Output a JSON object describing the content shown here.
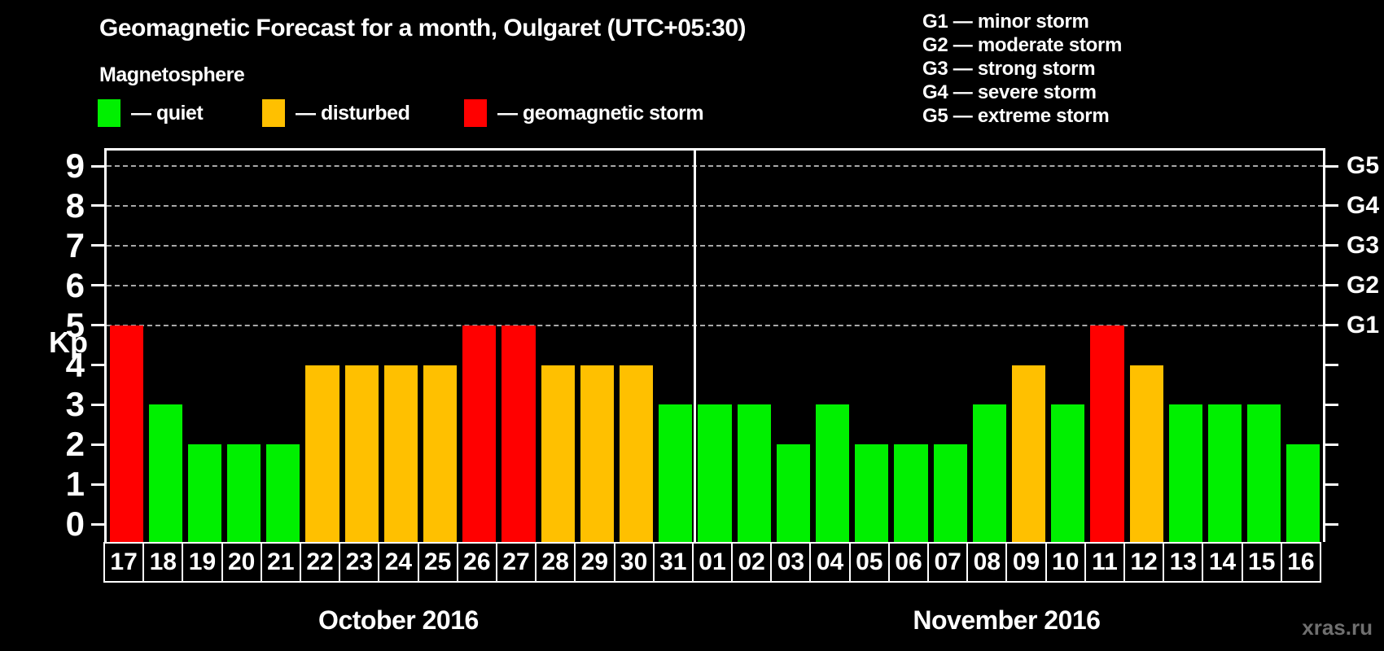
{
  "header": {
    "title": "Geomagnetic Forecast for a month, Oulgaret (UTC+05:30)",
    "subtitle": "Magnetosphere"
  },
  "legend": {
    "items": [
      {
        "status": "quiet",
        "label": "— quiet"
      },
      {
        "status": "disturbed",
        "label": "— disturbed"
      },
      {
        "status": "storm",
        "label": "— geomagnetic storm"
      }
    ]
  },
  "storm_scale_legend": {
    "items": [
      "G1 — minor storm",
      "G2 — moderate storm",
      "G3 — strong storm",
      "G4 — severe storm",
      "G5 — extreme storm"
    ]
  },
  "watermark": "xras.ru",
  "chart_data": {
    "type": "bar",
    "title": "Geomagnetic Forecast for a month, Oulgaret (UTC+05:30)",
    "ylabel": "Kp",
    "ylim": [
      0,
      9
    ],
    "yticks": [
      0,
      1,
      2,
      3,
      4,
      5,
      6,
      7,
      8,
      9
    ],
    "grid_levels": [
      5,
      6,
      7,
      8,
      9
    ],
    "grid_on": true,
    "right_axis": [
      {
        "kp": 5,
        "label": "G1"
      },
      {
        "kp": 6,
        "label": "G2"
      },
      {
        "kp": 7,
        "label": "G3"
      },
      {
        "kp": 8,
        "label": "G4"
      },
      {
        "kp": 9,
        "label": "G5"
      }
    ],
    "status_colors": {
      "quiet": "#00f000",
      "disturbed": "#ffc000",
      "storm": "#ff0000"
    },
    "months": [
      {
        "label": "October 2016",
        "days": [
          {
            "date": "17",
            "kp": 5,
            "status": "storm"
          },
          {
            "date": "18",
            "kp": 3,
            "status": "quiet"
          },
          {
            "date": "19",
            "kp": 2,
            "status": "quiet"
          },
          {
            "date": "20",
            "kp": 2,
            "status": "quiet"
          },
          {
            "date": "21",
            "kp": 2,
            "status": "quiet"
          },
          {
            "date": "22",
            "kp": 4,
            "status": "disturbed"
          },
          {
            "date": "23",
            "kp": 4,
            "status": "disturbed"
          },
          {
            "date": "24",
            "kp": 4,
            "status": "disturbed"
          },
          {
            "date": "25",
            "kp": 4,
            "status": "disturbed"
          },
          {
            "date": "26",
            "kp": 5,
            "status": "storm"
          },
          {
            "date": "27",
            "kp": 5,
            "status": "storm"
          },
          {
            "date": "28",
            "kp": 4,
            "status": "disturbed"
          },
          {
            "date": "29",
            "kp": 4,
            "status": "disturbed"
          },
          {
            "date": "30",
            "kp": 4,
            "status": "disturbed"
          },
          {
            "date": "31",
            "kp": 3,
            "status": "quiet"
          }
        ]
      },
      {
        "label": "November 2016",
        "days": [
          {
            "date": "01",
            "kp": 3,
            "status": "quiet"
          },
          {
            "date": "02",
            "kp": 3,
            "status": "quiet"
          },
          {
            "date": "03",
            "kp": 2,
            "status": "quiet"
          },
          {
            "date": "04",
            "kp": 3,
            "status": "quiet"
          },
          {
            "date": "05",
            "kp": 2,
            "status": "quiet"
          },
          {
            "date": "06",
            "kp": 2,
            "status": "quiet"
          },
          {
            "date": "07",
            "kp": 2,
            "status": "quiet"
          },
          {
            "date": "08",
            "kp": 3,
            "status": "quiet"
          },
          {
            "date": "09",
            "kp": 4,
            "status": "disturbed"
          },
          {
            "date": "10",
            "kp": 3,
            "status": "quiet"
          },
          {
            "date": "11",
            "kp": 5,
            "status": "storm"
          },
          {
            "date": "12",
            "kp": 4,
            "status": "disturbed"
          },
          {
            "date": "13",
            "kp": 3,
            "status": "quiet"
          },
          {
            "date": "14",
            "kp": 3,
            "status": "quiet"
          },
          {
            "date": "15",
            "kp": 3,
            "status": "quiet"
          },
          {
            "date": "16",
            "kp": 2,
            "status": "quiet"
          }
        ]
      }
    ]
  }
}
